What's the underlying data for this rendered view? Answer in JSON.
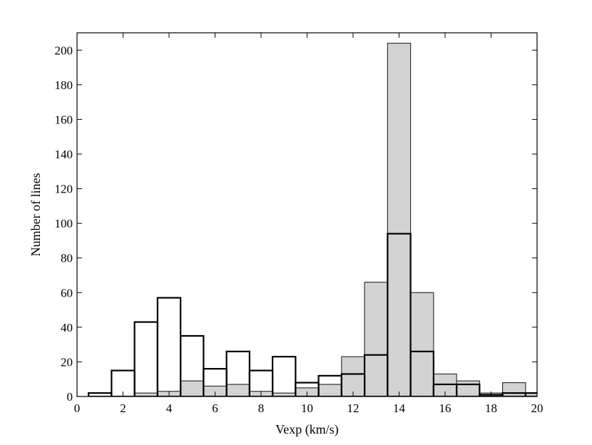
{
  "chart_data": {
    "type": "bar",
    "title": "",
    "xlabel": "Vexp (km/s)",
    "ylabel": "Number of lines",
    "xlim": [
      0,
      20
    ],
    "ylim": [
      0,
      210
    ],
    "xticks": [
      0,
      2,
      4,
      6,
      8,
      10,
      12,
      14,
      16,
      18,
      20
    ],
    "yticks": [
      0,
      20,
      40,
      60,
      80,
      100,
      120,
      140,
      160,
      180,
      200
    ],
    "grid": false,
    "bin_edges": [
      0.5,
      1.5,
      2.5,
      3.5,
      4.5,
      5.5,
      6.5,
      7.5,
      8.5,
      9.5,
      10.5,
      11.5,
      12.5,
      13.5,
      14.5,
      15.5,
      16.5,
      17.5,
      18.5,
      19.5,
      20.5
    ],
    "series": [
      {
        "style": "filled",
        "color": "#d3d3d3",
        "values": [
          0,
          0,
          2,
          3,
          9,
          6,
          7,
          3,
          2,
          5,
          7,
          23,
          66,
          204,
          60,
          13,
          9,
          2,
          8,
          2
        ]
      },
      {
        "style": "outline",
        "color": "#000000",
        "values": [
          2,
          15,
          43,
          57,
          35,
          16,
          26,
          15,
          23,
          8,
          12,
          13,
          24,
          94,
          26,
          7,
          7,
          1,
          2,
          2
        ]
      }
    ]
  }
}
